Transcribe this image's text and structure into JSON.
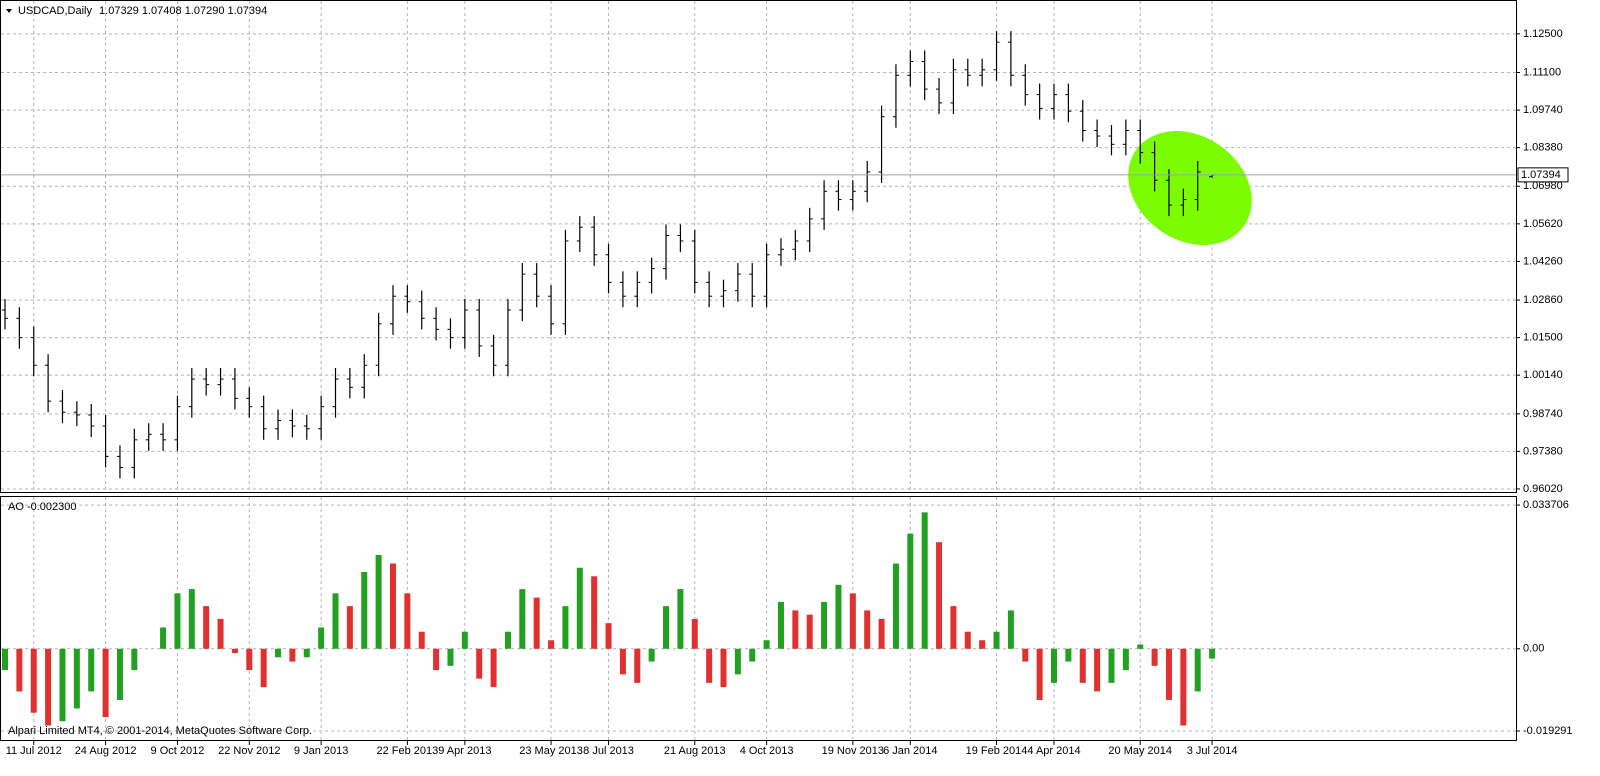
{
  "chart_data": [
    {
      "type": "ohlc",
      "title": "USDCAD,Daily",
      "header": [
        {
          "value": 1.07329,
          "label": "1.07329"
        },
        {
          "value": 1.07408,
          "label": "1.07408"
        },
        {
          "value": 1.0729,
          "label": "1.07290"
        },
        {
          "value": 1.07394,
          "label": "1.07394"
        }
      ],
      "current_price": {
        "value": 1.07394,
        "label": "1.07394"
      },
      "categories": [
        null,
        null,
        "11 Jul 2012",
        null,
        null,
        null,
        null,
        "24 Aug 2012",
        null,
        null,
        null,
        null,
        "9 Oct 2012",
        null,
        null,
        null,
        null,
        "22 Nov 2012",
        null,
        null,
        null,
        null,
        "9 Jan 2013",
        null,
        null,
        null,
        null,
        null,
        "22 Feb 2013",
        null,
        null,
        null,
        "9 Apr 2013",
        null,
        null,
        null,
        null,
        null,
        "23 May 2013",
        null,
        null,
        null,
        "8 Jul 2013",
        null,
        null,
        null,
        null,
        null,
        "21 Aug 2013",
        null,
        null,
        null,
        null,
        "4 Oct 2013",
        null,
        null,
        null,
        null,
        null,
        "19 Nov 2013",
        null,
        null,
        null,
        "6 Jan 2014",
        null,
        null,
        null,
        null,
        null,
        "19 Feb 2014",
        null,
        null,
        null,
        "4 Apr 2014",
        null,
        null,
        null,
        null,
        null,
        "20 May 2014",
        null,
        null,
        null,
        null,
        "3 Jul 2014"
      ],
      "open": [
        1.025,
        1.022,
        1.015,
        1.005,
        0.992,
        0.988,
        0.987,
        0.983,
        0.972,
        0.968,
        0.978,
        0.98,
        0.978,
        0.99,
        1,
        0.998,
        1,
        0.993,
        0.99,
        0.982,
        0.985,
        0.983,
        0.982,
        0.99,
        1,
        0.997,
        1.005,
        1.02,
        1.03,
        1.028,
        1.022,
        1.018,
        1.015,
        1.025,
        1.012,
        1.005,
        1.025,
        1.038,
        1.03,
        1.02,
        1.05,
        1.055,
        1.045,
        1.035,
        1.03,
        1.035,
        1.04,
        1.052,
        1.05,
        1.035,
        1.03,
        1.032,
        1.038,
        1.03,
        1.045,
        1.047,
        1.05,
        1.058,
        1.068,
        1.065,
        1.068,
        1.075,
        1.095,
        1.11,
        1.115,
        1.105,
        1.1,
        1.112,
        1.11,
        1.112,
        1.122,
        1.11,
        1.103,
        1.098,
        1.103,
        1.097,
        1.09,
        1.088,
        1.085,
        1.09,
        1.082,
        1.072,
        1.063,
        1.065,
        1.07329
      ],
      "high": [
        1.029,
        1.026,
        1.019,
        1.009,
        0.996,
        0.992,
        0.991,
        0.987,
        0.976,
        0.982,
        0.984,
        0.984,
        0.994,
        1.004,
        1.004,
        1.004,
        1.004,
        0.997,
        0.994,
        0.989,
        0.989,
        0.987,
        0.994,
        1.004,
        1.004,
        1.009,
        1.024,
        1.034,
        1.034,
        1.032,
        1.026,
        1.022,
        1.029,
        1.029,
        1.016,
        1.029,
        1.042,
        1.042,
        1.034,
        1.054,
        1.059,
        1.059,
        1.049,
        1.039,
        1.039,
        1.044,
        1.056,
        1.056,
        1.054,
        1.039,
        1.036,
        1.042,
        1.042,
        1.049,
        1.051,
        1.054,
        1.062,
        1.072,
        1.072,
        1.072,
        1.079,
        1.099,
        1.114,
        1.119,
        1.119,
        1.109,
        1.116,
        1.116,
        1.116,
        1.126,
        1.126,
        1.114,
        1.107,
        1.107,
        1.107,
        1.101,
        1.094,
        1.092,
        1.094,
        1.094,
        1.086,
        1.076,
        1.069,
        1.079,
        1.07408
      ],
      "low": [
        1.018,
        1.011,
        1.001,
        0.988,
        0.984,
        0.983,
        0.979,
        0.968,
        0.964,
        0.964,
        0.974,
        0.974,
        0.974,
        0.986,
        0.994,
        0.994,
        0.989,
        0.986,
        0.978,
        0.978,
        0.979,
        0.978,
        0.978,
        0.986,
        0.993,
        0.993,
        1.001,
        1.016,
        1.024,
        1.018,
        1.014,
        1.011,
        1.011,
        1.008,
        1.001,
        1.001,
        1.021,
        1.026,
        1.016,
        1.016,
        1.046,
        1.041,
        1.031,
        1.026,
        1.026,
        1.031,
        1.036,
        1.046,
        1.031,
        1.026,
        1.026,
        1.028,
        1.026,
        1.026,
        1.041,
        1.043,
        1.046,
        1.054,
        1.061,
        1.061,
        1.064,
        1.071,
        1.091,
        1.106,
        1.101,
        1.096,
        1.096,
        1.106,
        1.106,
        1.108,
        1.106,
        1.099,
        1.094,
        1.094,
        1.093,
        1.086,
        1.084,
        1.081,
        1.081,
        1.078,
        1.068,
        1.059,
        1.059,
        1.061,
        1.0729
      ],
      "close": [
        1.022,
        1.015,
        1.005,
        0.992,
        0.988,
        0.987,
        0.983,
        0.972,
        0.968,
        0.978,
        0.98,
        0.978,
        0.99,
        1,
        0.998,
        1,
        0.993,
        0.99,
        0.982,
        0.985,
        0.983,
        0.982,
        0.99,
        1,
        0.997,
        1.005,
        1.02,
        1.03,
        1.028,
        1.022,
        1.018,
        1.015,
        1.025,
        1.012,
        1.005,
        1.025,
        1.038,
        1.03,
        1.02,
        1.05,
        1.055,
        1.045,
        1.035,
        1.03,
        1.035,
        1.04,
        1.052,
        1.05,
        1.035,
        1.03,
        1.032,
        1.038,
        1.03,
        1.045,
        1.047,
        1.05,
        1.058,
        1.068,
        1.065,
        1.068,
        1.075,
        1.095,
        1.11,
        1.115,
        1.105,
        1.1,
        1.112,
        1.11,
        1.112,
        1.122,
        1.11,
        1.103,
        1.098,
        1.103,
        1.097,
        1.09,
        1.088,
        1.085,
        1.09,
        1.082,
        1.072,
        1.063,
        1.065,
        1.075,
        1.07394
      ],
      "color": "#000000",
      "ylim": [
        0.9591,
        1.1369
      ],
      "yticks": [
        {
          "value": 1.125,
          "label": "1.12500"
        },
        {
          "value": 1.111,
          "label": "1.11100"
        },
        {
          "value": 1.0974,
          "label": "1.09740"
        },
        {
          "value": 1.0838,
          "label": "1.08380"
        },
        {
          "value": 1.0698,
          "label": "1.06980"
        },
        {
          "value": 1.0562,
          "label": "1.05620"
        },
        {
          "value": 1.0426,
          "label": "1.04260"
        },
        {
          "value": 1.0286,
          "label": "1.02860"
        },
        {
          "value": 1.015,
          "label": "1.01500"
        },
        {
          "value": 1.0014,
          "label": "1.00140"
        },
        {
          "value": 0.9874,
          "label": "0.98740"
        },
        {
          "value": 0.9738,
          "label": "0.97380"
        },
        {
          "value": 0.9602,
          "label": "0.96020"
        }
      ],
      "grid": true
    },
    {
      "type": "bar",
      "title": "AO",
      "current": {
        "value": -0.0023,
        "label": "-0.002300"
      },
      "values": [
        -0.005,
        -0.01,
        -0.015,
        -0.018,
        -0.017,
        -0.014,
        -0.01,
        -0.016,
        -0.012,
        -0.005,
        0,
        0.005,
        0.013,
        0.014,
        0.01,
        0.007,
        -0.001,
        -0.005,
        -0.009,
        -0.002,
        -0.003,
        -0.002,
        0.005,
        0.013,
        0.01,
        0.018,
        0.022,
        0.02,
        0.013,
        0.004,
        -0.005,
        -0.004,
        0.004,
        -0.007,
        -0.009,
        0.004,
        0.014,
        0.012,
        0.002,
        0.01,
        0.019,
        0.017,
        0.006,
        -0.006,
        -0.008,
        -0.003,
        0.01,
        0.014,
        0.007,
        -0.008,
        -0.009,
        -0.006,
        -0.003,
        0.002,
        0.011,
        0.009,
        0.008,
        0.011,
        0.015,
        0.013,
        0.009,
        0.007,
        0.02,
        0.027,
        0.032,
        0.025,
        0.01,
        0.004,
        0.002,
        0.004,
        0.009,
        -0.003,
        -0.012,
        -0.008,
        -0.003,
        -0.008,
        -0.01,
        -0.008,
        -0.005,
        0.001,
        -0.004,
        -0.012,
        -0.018,
        -0.01,
        -0.0023
      ],
      "up_color": "#22a022",
      "down_color": "#e03030",
      "ylim": [
        -0.0214,
        0.0356
      ],
      "yticks": [
        0.033706,
        {
          "value": 0,
          "label": "0.00"
        },
        -0.019291
      ],
      "grid": true
    }
  ],
  "footer": "Alpari Limited MT4, © 2001-2014, MetaQuotes Software Corp."
}
